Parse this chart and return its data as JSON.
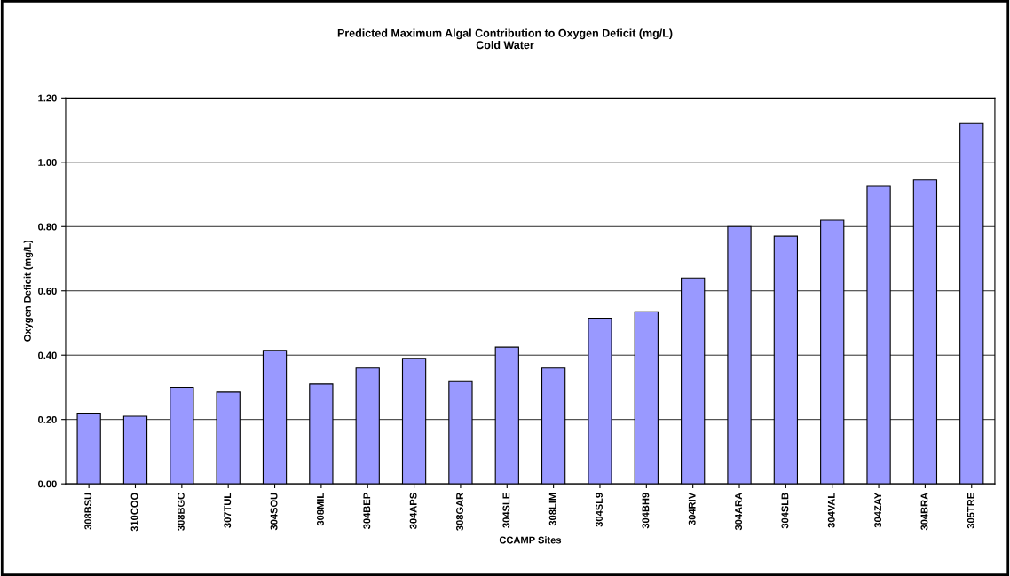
{
  "chart_data": {
    "type": "bar",
    "title": "Predicted Maximum Algal Contribution to Oxygen Deficit (mg/L)\nCold Water",
    "xlabel": "CCAMP Sites",
    "ylabel": "Oxygen Deficit (mg/L)",
    "categories": [
      "308BSU",
      "310COO",
      "308BGC",
      "307TUL",
      "304SOU",
      "308MIL",
      "304BEP",
      "304APS",
      "308GAR",
      "304SLE",
      "308LIM",
      "304SL9",
      "304BH9",
      "304RIV",
      "304ARA",
      "304SLB",
      "304VAL",
      "304ZAY",
      "304BRA",
      "305TRE"
    ],
    "values": [
      0.22,
      0.21,
      0.3,
      0.285,
      0.415,
      0.31,
      0.36,
      0.39,
      0.32,
      0.425,
      0.36,
      0.515,
      0.535,
      0.64,
      0.8,
      0.77,
      0.82,
      0.925,
      0.945,
      1.12
    ],
    "color": "#9999ff",
    "ylim": [
      0,
      1.2
    ],
    "yticks": [
      {
        "value": 0,
        "label": "0.00"
      },
      {
        "value": 0.2,
        "label": "0.20"
      },
      {
        "value": 0.4,
        "label": "0.40"
      },
      {
        "value": 0.6,
        "label": "0.60"
      },
      {
        "value": 0.8,
        "label": "0.80"
      },
      {
        "value": 1.0,
        "label": "1.00"
      },
      {
        "value": 1.2,
        "label": "1.20"
      }
    ],
    "grid": "y",
    "legend": false
  }
}
